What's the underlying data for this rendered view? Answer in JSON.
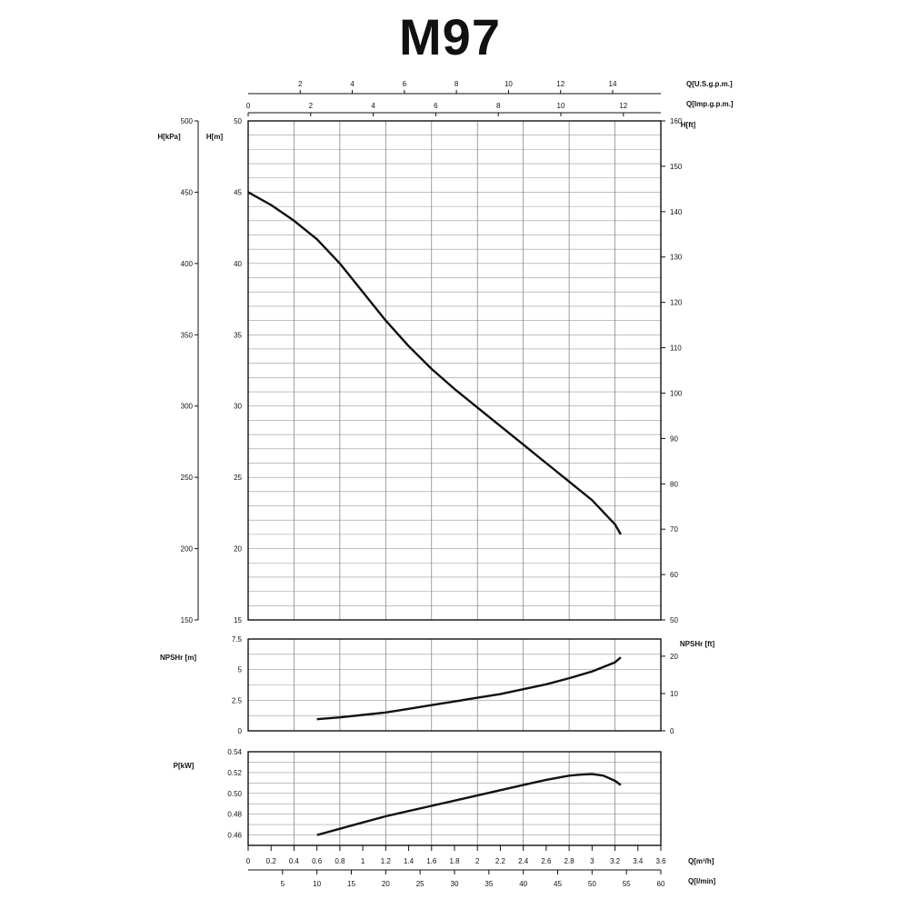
{
  "title": "M97",
  "chart_data": [
    {
      "type": "line",
      "name": "head",
      "q_m3h": [
        0,
        0.2,
        0.4,
        0.6,
        0.8,
        1.0,
        1.2,
        1.4,
        1.6,
        1.8,
        2.0,
        2.2,
        2.4,
        2.6,
        2.8,
        3.0,
        3.2,
        3.25
      ],
      "values": [
        45.0,
        44.1,
        43.0,
        41.7,
        40.0,
        38.0,
        36.0,
        34.2,
        32.6,
        31.2,
        29.9,
        28.6,
        27.3,
        26.0,
        24.7,
        23.4,
        21.7,
        21.0
      ],
      "ylabel": "H[m]",
      "ylim": [
        15,
        50
      ],
      "yticks": [
        "15",
        "20",
        "25",
        "30",
        "35",
        "40",
        "45",
        "50"
      ],
      "left_axis": {
        "label": "H[kPa]",
        "range": [
          150,
          500
        ],
        "ticks": [
          "150",
          "200",
          "250",
          "300",
          "350",
          "400",
          "450",
          "500"
        ]
      },
      "right_axis": {
        "label": "H[ft]",
        "range": [
          50,
          160
        ],
        "ticks": [
          "50",
          "60",
          "70",
          "80",
          "90",
          "100",
          "110",
          "120",
          "130",
          "140",
          "150",
          "160"
        ]
      },
      "top_axis_us": {
        "label": "Q[U.S.g.p.m.]",
        "ticks": [
          "2",
          "4",
          "6",
          "8",
          "10",
          "12",
          "14"
        ]
      },
      "top_axis_imp": {
        "label": "Q[Imp.g.p.m.]",
        "ticks": [
          "0",
          "2",
          "4",
          "6",
          "8",
          "10",
          "12"
        ]
      }
    },
    {
      "type": "line",
      "name": "npshr",
      "q_m3h": [
        0.6,
        0.8,
        1.0,
        1.2,
        1.4,
        1.6,
        1.8,
        2.0,
        2.2,
        2.4,
        2.6,
        2.8,
        3.0,
        3.2,
        3.25
      ],
      "values": [
        0.95,
        1.1,
        1.3,
        1.5,
        1.8,
        2.1,
        2.4,
        2.7,
        3.0,
        3.4,
        3.8,
        4.3,
        4.85,
        5.6,
        6.0
      ],
      "ylabel": "NPSHr [m]",
      "ylim": [
        0,
        7.5
      ],
      "yticks": [
        "0",
        "2.5",
        "5",
        "7.5"
      ],
      "right_axis": {
        "label": "NPSHr [ft]",
        "range": [
          0,
          24.6
        ],
        "ticks": [
          "0",
          "10",
          "20"
        ]
      }
    },
    {
      "type": "line",
      "name": "power",
      "q_m3h": [
        0.6,
        0.8,
        1.0,
        1.2,
        1.4,
        1.6,
        1.8,
        2.0,
        2.2,
        2.4,
        2.6,
        2.8,
        2.9,
        3.0,
        3.1,
        3.2,
        3.25
      ],
      "values": [
        0.46,
        0.466,
        0.472,
        0.478,
        0.483,
        0.488,
        0.493,
        0.498,
        0.503,
        0.508,
        0.513,
        0.517,
        0.518,
        0.5185,
        0.517,
        0.512,
        0.508
      ],
      "ylabel": "P[kW]",
      "ylim": [
        0.45,
        0.54
      ],
      "yticks": [
        "0.46",
        "0.48",
        "0.50",
        "0.52",
        "0.54"
      ]
    }
  ],
  "x_axis": {
    "label": "Q[m³/h]",
    "range": [
      0,
      3.6
    ],
    "ticks": [
      "0",
      "0.2",
      "0.4",
      "0.6",
      "0.8",
      "1",
      "1.2",
      "1.4",
      "1.6",
      "1.8",
      "2",
      "2.2",
      "2.4",
      "2.6",
      "2.8",
      "3",
      "3.2",
      "3.4",
      "3.6"
    ]
  },
  "x_axis_lmin": {
    "label": "Q[l/min]",
    "range": [
      0,
      60
    ],
    "ticks": [
      "5",
      "10",
      "15",
      "20",
      "25",
      "30",
      "35",
      "40",
      "45",
      "50",
      "55",
      "60"
    ]
  }
}
